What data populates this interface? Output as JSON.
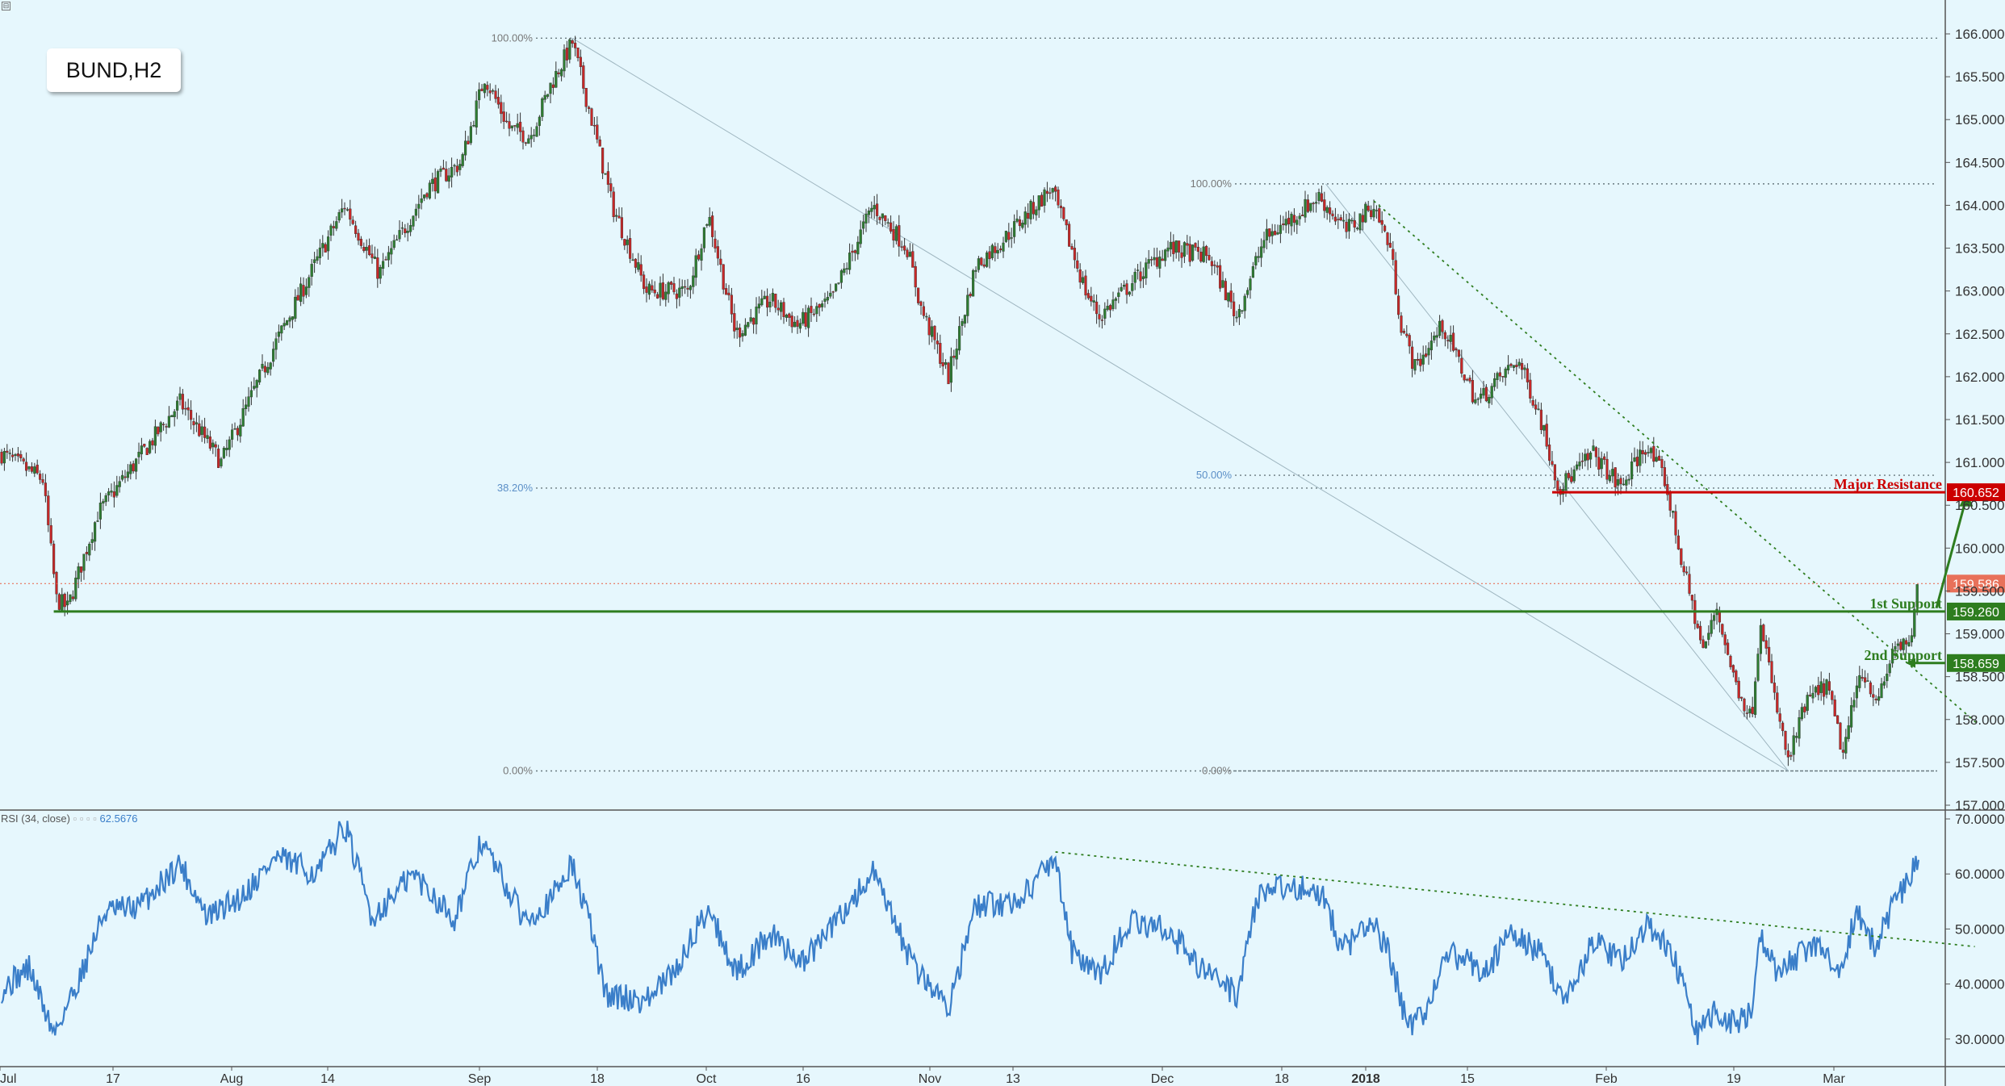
{
  "symbol_label": "BUND,H2",
  "corner_icon": "⊟",
  "colors": {
    "background": "#e6f7fd",
    "bull_candle": "#2e7d32",
    "bear_candle": "#c62828",
    "support": "#2e7d1f",
    "resistance": "#cc0000",
    "current_price": "#e8715a",
    "rsi_line": "#3a7ec9"
  },
  "annotations": {
    "major_resistance": "Major Resistance",
    "first_support": "1st Support",
    "second_support": "2nd Support"
  },
  "price_tags": {
    "major_resistance": "160.652",
    "current": "159.586",
    "first_support": "159.260",
    "second_support": "158.659"
  },
  "fib_labels": {
    "left_high": "100.00%",
    "left_mid": "38.20%",
    "left_low": "0.00%",
    "right_high": "100.00%",
    "right_mid": "50.00%",
    "right_low": "0.00%"
  },
  "rsi_legend": {
    "name": "RSI (34, close)",
    "controls": "▫ ▫ ▫ ▫",
    "value": "62.5676"
  },
  "chart_data": [
    {
      "type": "candlestick",
      "symbol": "BUND",
      "timeframe": "H2",
      "ylim": [
        157.0,
        166.3
      ],
      "y_ticks": [
        "166.000",
        "165.500",
        "165.000",
        "164.500",
        "164.000",
        "163.500",
        "163.000",
        "162.500",
        "162.000",
        "161.500",
        "161.000",
        "160.500",
        "160.000",
        "159.500",
        "159.000",
        "158.500",
        "158.000",
        "157.500",
        "157.000"
      ],
      "x_ticks": [
        "Jul",
        "17",
        "Aug",
        "14",
        "Sep",
        "18",
        "Oct",
        "16",
        "Nov",
        "13",
        "Dec",
        "18",
        "2018",
        "15",
        "Feb",
        "19",
        "Mar"
      ],
      "price_path_keypoints": [
        {
          "t": 0,
          "p": 161.1
        },
        {
          "t": 30,
          "p": 160.8
        },
        {
          "t": 40,
          "p": 159.4
        },
        {
          "t": 48,
          "p": 159.3
        },
        {
          "t": 70,
          "p": 160.4
        },
        {
          "t": 130,
          "p": 161.7
        },
        {
          "t": 160,
          "p": 161.0
        },
        {
          "t": 200,
          "p": 162.4
        },
        {
          "t": 250,
          "p": 164.0
        },
        {
          "t": 275,
          "p": 163.2
        },
        {
          "t": 310,
          "p": 164.2
        },
        {
          "t": 335,
          "p": 164.5
        },
        {
          "t": 352,
          "p": 165.5
        },
        {
          "t": 370,
          "p": 164.9
        },
        {
          "t": 385,
          "p": 164.8
        },
        {
          "t": 400,
          "p": 165.4
        },
        {
          "t": 416,
          "p": 165.9
        },
        {
          "t": 430,
          "p": 165.0
        },
        {
          "t": 445,
          "p": 164.0
        },
        {
          "t": 470,
          "p": 163.0
        },
        {
          "t": 500,
          "p": 163.0
        },
        {
          "t": 515,
          "p": 163.9
        },
        {
          "t": 535,
          "p": 162.5
        },
        {
          "t": 560,
          "p": 162.9
        },
        {
          "t": 580,
          "p": 162.6
        },
        {
          "t": 605,
          "p": 162.9
        },
        {
          "t": 635,
          "p": 164.0
        },
        {
          "t": 660,
          "p": 163.5
        },
        {
          "t": 670,
          "p": 162.8
        },
        {
          "t": 690,
          "p": 162.0
        },
        {
          "t": 710,
          "p": 163.3
        },
        {
          "t": 730,
          "p": 163.6
        },
        {
          "t": 765,
          "p": 164.2
        },
        {
          "t": 790,
          "p": 163.0
        },
        {
          "t": 800,
          "p": 162.7
        },
        {
          "t": 830,
          "p": 163.2
        },
        {
          "t": 850,
          "p": 163.5
        },
        {
          "t": 880,
          "p": 163.4
        },
        {
          "t": 900,
          "p": 162.7
        },
        {
          "t": 920,
          "p": 163.6
        },
        {
          "t": 960,
          "p": 164.1
        },
        {
          "t": 980,
          "p": 163.7
        },
        {
          "t": 1000,
          "p": 164.0
        },
        {
          "t": 1012,
          "p": 163.5
        },
        {
          "t": 1020,
          "p": 162.6
        },
        {
          "t": 1030,
          "p": 162.1
        },
        {
          "t": 1050,
          "p": 162.6
        },
        {
          "t": 1075,
          "p": 161.7
        },
        {
          "t": 1105,
          "p": 162.2
        },
        {
          "t": 1120,
          "p": 161.6
        },
        {
          "t": 1135,
          "p": 160.7
        },
        {
          "t": 1160,
          "p": 161.1
        },
        {
          "t": 1180,
          "p": 160.7
        },
        {
          "t": 1198,
          "p": 161.2
        },
        {
          "t": 1212,
          "p": 160.8
        },
        {
          "t": 1225,
          "p": 159.8
        },
        {
          "t": 1240,
          "p": 158.8
        },
        {
          "t": 1250,
          "p": 159.3
        },
        {
          "t": 1262,
          "p": 158.5
        },
        {
          "t": 1275,
          "p": 158.0
        },
        {
          "t": 1282,
          "p": 159.2
        },
        {
          "t": 1290,
          "p": 158.4
        },
        {
          "t": 1302,
          "p": 157.5
        },
        {
          "t": 1315,
          "p": 158.2
        },
        {
          "t": 1330,
          "p": 158.4
        },
        {
          "t": 1342,
          "p": 157.6
        },
        {
          "t": 1355,
          "p": 158.6
        },
        {
          "t": 1368,
          "p": 158.2
        },
        {
          "t": 1380,
          "p": 158.9
        },
        {
          "t": 1390,
          "p": 158.8
        },
        {
          "t": 1397,
          "p": 159.6
        }
      ],
      "levels": [
        {
          "name": "Major Resistance",
          "price": 160.652
        },
        {
          "name": "1st Support",
          "price": 159.26
        },
        {
          "name": "2nd Support",
          "price": 158.659
        },
        {
          "name": "current price",
          "price": 159.586
        }
      ],
      "fibonacci": [
        {
          "anchor": "left",
          "levels": [
            {
              "label": "100.00%",
              "price": 165.95
            },
            {
              "label": "38.20%",
              "price": 160.7
            },
            {
              "label": "0.00%",
              "price": 157.4
            }
          ]
        },
        {
          "anchor": "right",
          "levels": [
            {
              "label": "100.00%",
              "price": 164.25
            },
            {
              "label": "50.00%",
              "price": 160.85
            },
            {
              "label": "0.00%",
              "price": 157.4
            }
          ]
        }
      ],
      "trendline": {
        "from": {
          "t": 1000,
          "p": 164.05
        },
        "to": {
          "t": 1440,
          "p": 157.95
        }
      }
    },
    {
      "type": "line",
      "name": "RSI (34, close)",
      "current_value": 62.5676,
      "ylim": [
        26,
        71
      ],
      "y_ticks": [
        "70.0000",
        "60.0000",
        "50.0000",
        "40.0000",
        "30.0000"
      ],
      "rsi_keypoints": [
        {
          "t": 0,
          "v": 39
        },
        {
          "t": 20,
          "v": 43
        },
        {
          "t": 38,
          "v": 31
        },
        {
          "t": 55,
          "v": 40
        },
        {
          "t": 75,
          "v": 53
        },
        {
          "t": 100,
          "v": 54
        },
        {
          "t": 130,
          "v": 62
        },
        {
          "t": 150,
          "v": 52
        },
        {
          "t": 175,
          "v": 56
        },
        {
          "t": 200,
          "v": 63
        },
        {
          "t": 230,
          "v": 60
        },
        {
          "t": 250,
          "v": 69
        },
        {
          "t": 270,
          "v": 52
        },
        {
          "t": 300,
          "v": 60
        },
        {
          "t": 330,
          "v": 52
        },
        {
          "t": 350,
          "v": 66
        },
        {
          "t": 380,
          "v": 52
        },
        {
          "t": 400,
          "v": 55
        },
        {
          "t": 415,
          "v": 62
        },
        {
          "t": 430,
          "v": 50
        },
        {
          "t": 440,
          "v": 38
        },
        {
          "t": 470,
          "v": 37
        },
        {
          "t": 490,
          "v": 42
        },
        {
          "t": 515,
          "v": 54
        },
        {
          "t": 535,
          "v": 42
        },
        {
          "t": 560,
          "v": 49
        },
        {
          "t": 585,
          "v": 44
        },
        {
          "t": 610,
          "v": 52
        },
        {
          "t": 635,
          "v": 60
        },
        {
          "t": 665,
          "v": 43
        },
        {
          "t": 690,
          "v": 36
        },
        {
          "t": 710,
          "v": 54
        },
        {
          "t": 740,
          "v": 55
        },
        {
          "t": 768,
          "v": 63
        },
        {
          "t": 780,
          "v": 46
        },
        {
          "t": 800,
          "v": 41
        },
        {
          "t": 820,
          "v": 51
        },
        {
          "t": 850,
          "v": 50
        },
        {
          "t": 870,
          "v": 44
        },
        {
          "t": 900,
          "v": 38
        },
        {
          "t": 915,
          "v": 56
        },
        {
          "t": 940,
          "v": 58
        },
        {
          "t": 965,
          "v": 56
        },
        {
          "t": 975,
          "v": 46
        },
        {
          "t": 1000,
          "v": 51
        },
        {
          "t": 1012,
          "v": 45
        },
        {
          "t": 1025,
          "v": 32
        },
        {
          "t": 1040,
          "v": 36
        },
        {
          "t": 1055,
          "v": 46
        },
        {
          "t": 1080,
          "v": 42
        },
        {
          "t": 1100,
          "v": 49
        },
        {
          "t": 1120,
          "v": 46
        },
        {
          "t": 1140,
          "v": 37
        },
        {
          "t": 1160,
          "v": 48
        },
        {
          "t": 1180,
          "v": 44
        },
        {
          "t": 1200,
          "v": 51
        },
        {
          "t": 1220,
          "v": 44
        },
        {
          "t": 1235,
          "v": 31
        },
        {
          "t": 1250,
          "v": 35
        },
        {
          "t": 1262,
          "v": 33
        },
        {
          "t": 1275,
          "v": 35
        },
        {
          "t": 1282,
          "v": 48
        },
        {
          "t": 1295,
          "v": 42
        },
        {
          "t": 1310,
          "v": 45
        },
        {
          "t": 1325,
          "v": 47
        },
        {
          "t": 1340,
          "v": 43
        },
        {
          "t": 1352,
          "v": 53
        },
        {
          "t": 1365,
          "v": 47
        },
        {
          "t": 1380,
          "v": 55
        },
        {
          "t": 1390,
          "v": 59
        },
        {
          "t": 1397,
          "v": 63
        }
      ],
      "trendline": {
        "from": {
          "t": 768,
          "v": 64
        },
        "to": {
          "t": 1438,
          "v": 46.8
        }
      }
    }
  ]
}
